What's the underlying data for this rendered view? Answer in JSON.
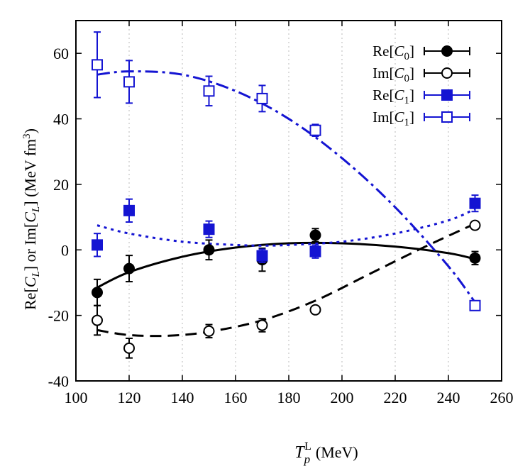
{
  "chart_data": {
    "type": "scatter",
    "xlabel": "T_p^L (MeV)",
    "ylabel": "Re[C_L] or Im[C_L] (MeV fm^3)",
    "xlim": [
      100,
      260
    ],
    "ylim": [
      -40,
      70
    ],
    "xticks": [
      100,
      120,
      140,
      160,
      180,
      200,
      220,
      240,
      260
    ],
    "yticks": [
      -40,
      -20,
      0,
      20,
      40,
      60
    ],
    "xtick_labels": [
      "100",
      "120",
      "140",
      "160",
      "180",
      "200",
      "220",
      "240",
      "260"
    ],
    "ytick_labels": [
      "-40",
      "-20",
      "0",
      "20",
      "40",
      "60"
    ],
    "grid": "vertical dotted",
    "legend_position": "top-right",
    "series": [
      {
        "name": "Re[C0]",
        "legend_main": "Re[",
        "legend_var": "C",
        "legend_sub": "0",
        "legend_close": "]",
        "color": "#000000",
        "marker": "filled-circle",
        "x": [
          108,
          120,
          150,
          170,
          190,
          250
        ],
        "y": [
          -13,
          -5.7,
          0,
          -3,
          4.5,
          -2.5
        ],
        "err": [
          4,
          4,
          3,
          3.5,
          2,
          2
        ],
        "fit_style": "solid",
        "fit_x": [
          108,
          120,
          140,
          160,
          180,
          200,
          220,
          240,
          250
        ],
        "fit_y": [
          -11.5,
          -6.8,
          -2.1,
          0.7,
          2.0,
          2.0,
          1.0,
          -1.0,
          -2.8
        ]
      },
      {
        "name": "Im[C0]",
        "legend_main": "Im[",
        "legend_var": "C",
        "legend_sub": "0",
        "legend_close": "]",
        "color": "#000000",
        "marker": "open-circle",
        "x": [
          108,
          120,
          150,
          170,
          190,
          250
        ],
        "y": [
          -21.5,
          -30,
          -24.8,
          -23,
          -18.3,
          7.5
        ],
        "err": [
          4.5,
          3,
          2,
          2,
          1,
          1
        ],
        "fit_style": "dashed",
        "fit_x": [
          108,
          120,
          135,
          150,
          170,
          190,
          210,
          230,
          250
        ],
        "fit_y": [
          -24.5,
          -26,
          -26.2,
          -25,
          -21.5,
          -15.5,
          -7.5,
          0.5,
          8.0
        ]
      },
      {
        "name": "Re[C1]",
        "legend_main": "Re[",
        "legend_var": "C",
        "legend_sub": "1",
        "legend_close": "]",
        "color": "#1414d2",
        "marker": "filled-square",
        "x": [
          108,
          120,
          150,
          170,
          190,
          250
        ],
        "y": [
          1.5,
          12,
          6.3,
          -1.8,
          -0.5,
          14.2
        ],
        "err": [
          3.5,
          3.5,
          2.5,
          2,
          2,
          2.5
        ],
        "fit_style": "dotted",
        "fit_x": [
          108,
          120,
          140,
          160,
          170,
          180,
          200,
          220,
          240,
          250
        ],
        "fit_y": [
          7.5,
          5.0,
          2.5,
          1.5,
          1.3,
          1.5,
          2.5,
          5.0,
          9.0,
          12.5
        ]
      },
      {
        "name": "Im[C1]",
        "legend_main": "Im[",
        "legend_var": "C",
        "legend_sub": "1",
        "legend_close": "]",
        "color": "#1414d2",
        "marker": "open-square",
        "x": [
          108,
          120,
          150,
          170,
          190,
          250
        ],
        "y": [
          56.5,
          51.3,
          48.5,
          46.2,
          36.5,
          -17
        ],
        "err": [
          10,
          6.5,
          4.5,
          4,
          1.8,
          1
        ],
        "fit_style": "dashdot",
        "fit_x": [
          108,
          120,
          140,
          160,
          180,
          200,
          220,
          240,
          250
        ],
        "fit_y": [
          53.5,
          54.5,
          53.5,
          48.5,
          40.0,
          28.0,
          13.0,
          -5.0,
          -16.0
        ]
      }
    ]
  }
}
